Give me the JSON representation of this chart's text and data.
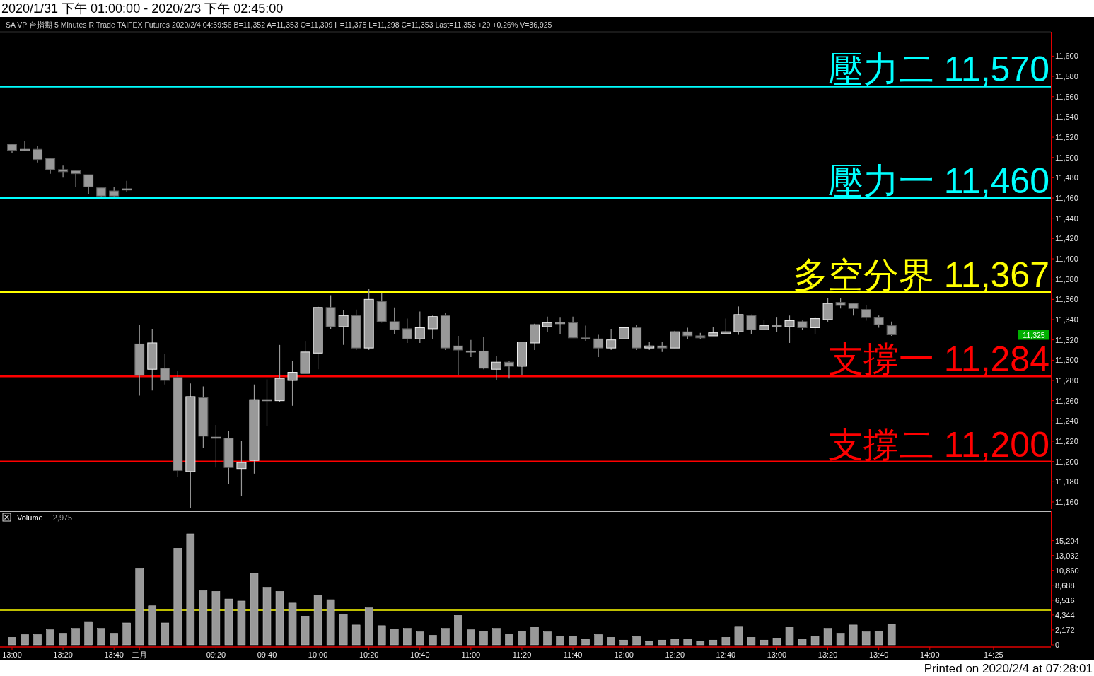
{
  "chart_data": [
    {
      "type": "candlestick",
      "title": "2020/1/31 下午 01:00:00 - 2020/2/3 下午 02:45:00",
      "annotations": [
        "SA VP 台指期 5 Minutes R Trade TAIFEX Futures 2020/2/4 04:59:56 B=11,352 A=11,353 O=11,309 H=11,375 L=11,298 C=11,353 Last=11,353 +29 +0.26% V=36,925",
        "Printed on 2020/2/4 at 07:28:01",
        {
          "text": "11,325",
          "y": 11325
        }
      ],
      "categories": [
        null,
        null,
        null,
        null,
        null,
        null,
        null,
        null,
        null,
        null,
        null,
        null,
        null,
        null,
        null,
        null,
        null,
        null,
        null,
        null,
        null,
        null,
        null,
        null,
        null,
        null,
        null,
        null,
        null,
        null,
        null,
        null,
        null,
        null,
        null,
        null,
        null,
        null,
        null,
        null,
        null,
        null,
        null,
        null,
        null,
        null,
        null,
        null,
        null,
        null,
        null,
        null,
        null,
        null,
        null,
        null,
        null,
        null,
        null,
        null,
        null,
        null,
        null,
        null,
        null,
        null,
        null,
        null,
        null,
        null,
        null,
        null,
        null,
        null,
        null,
        null,
        null,
        null,
        null,
        null,
        null,
        null
      ],
      "color": "#999999",
      "ohlc": [
        [
          11513,
          11513,
          11504,
          11507
        ],
        [
          11508,
          11516,
          11506,
          11508
        ],
        [
          11508,
          11511,
          11495,
          11498
        ],
        [
          11499,
          11499,
          11484,
          11488
        ],
        [
          11488,
          11492,
          11480,
          11486
        ],
        [
          11487,
          11488,
          11471,
          11484
        ],
        [
          11483,
          11483,
          11464,
          11471
        ],
        [
          11470,
          11470,
          11461,
          11462
        ],
        [
          11467,
          11471,
          11461,
          11462
        ],
        [
          11469,
          11477,
          11466,
          11469
        ],
        [
          11316,
          11335,
          11265,
          11285
        ],
        [
          11291,
          11331,
          11270,
          11317
        ],
        [
          11292,
          11306,
          11276,
          11280
        ],
        [
          11283,
          11289,
          11185,
          11191
        ],
        [
          11190,
          11277,
          11154,
          11264
        ],
        [
          11263,
          11274,
          11213,
          11225
        ],
        [
          11224,
          11236,
          11194,
          11224
        ],
        [
          11223,
          11230,
          11178,
          11194
        ],
        [
          11193,
          11220,
          11166,
          11199
        ],
        [
          11201,
          11276,
          11188,
          11261
        ],
        [
          11261,
          11281,
          11235,
          11261
        ],
        [
          11260,
          11315,
          11259,
          11282
        ],
        [
          11280,
          11299,
          11255,
          11288
        ],
        [
          11287,
          11319,
          11287,
          11308
        ],
        [
          11307,
          11353,
          11291,
          11352
        ],
        [
          11352,
          11364,
          11331,
          11333
        ],
        [
          11333,
          11349,
          11315,
          11344
        ],
        [
          11344,
          11350,
          11310,
          11312
        ],
        [
          11312,
          11370,
          11310,
          11360
        ],
        [
          11358,
          11366,
          11337,
          11338
        ],
        [
          11338,
          11352,
          11326,
          11330
        ],
        [
          11331,
          11341,
          11317,
          11321
        ],
        [
          11321,
          11348,
          11317,
          11332
        ],
        [
          11331,
          11344,
          11321,
          11343
        ],
        [
          11344,
          11347,
          11310,
          11312
        ],
        [
          11314,
          11324,
          11285,
          11310
        ],
        [
          11309,
          11320,
          11303,
          11309
        ],
        [
          11309,
          11323,
          11291,
          11292
        ],
        [
          11291,
          11304,
          11280,
          11298
        ],
        [
          11298,
          11299,
          11282,
          11294
        ],
        [
          11294,
          11318,
          11285,
          11318
        ],
        [
          11317,
          11336,
          11310,
          11335
        ],
        [
          11333,
          11343,
          11328,
          11337
        ],
        [
          11337,
          11342,
          11326,
          11337
        ],
        [
          11337,
          11343,
          11322,
          11322
        ],
        [
          11322,
          11334,
          11319,
          11321
        ],
        [
          11321,
          11325,
          11303,
          11312
        ],
        [
          11312,
          11331,
          11310,
          11320
        ],
        [
          11321,
          11332,
          11321,
          11332
        ],
        [
          11332,
          11335,
          11310,
          11312
        ],
        [
          11312,
          11318,
          11310,
          11314
        ],
        [
          11314,
          11318,
          11308,
          11312
        ],
        [
          11312,
          11329,
          11312,
          11328
        ],
        [
          11328,
          11332,
          11321,
          11324
        ],
        [
          11324,
          11327,
          11321,
          11322
        ],
        [
          11324,
          11333,
          11324,
          11327
        ],
        [
          11326,
          11341,
          11326,
          11328
        ],
        [
          11328,
          11353,
          11325,
          11345
        ],
        [
          11344,
          11345,
          11326,
          11330
        ],
        [
          11330,
          11340,
          11330,
          11334
        ],
        [
          11334,
          11342,
          11328,
          11334
        ],
        [
          11333,
          11344,
          11317,
          11339
        ],
        [
          11338,
          11339,
          11330,
          11332
        ],
        [
          11332,
          11342,
          11326,
          11341
        ],
        [
          11340,
          11361,
          11338,
          11356
        ],
        [
          11357,
          11361,
          11351,
          11354
        ],
        [
          11356,
          11356,
          11344,
          11351
        ],
        [
          11350,
          11354,
          11339,
          11342
        ],
        [
          11342,
          11344,
          11332,
          11335
        ],
        [
          11334,
          11338,
          11324,
          11325
        ],
        null,
        null,
        null,
        null,
        null,
        null,
        null,
        null,
        null,
        null,
        null,
        null
      ],
      "ylim": [
        11153,
        11624
      ],
      "yticks": [
        {
          "value": 11160,
          "label": "11,160"
        },
        {
          "value": 11180,
          "label": "11,180"
        },
        {
          "value": 11200,
          "label": "11,200"
        },
        {
          "value": 11220,
          "label": "11,220"
        },
        {
          "value": 11240,
          "label": "11,240"
        },
        {
          "value": 11260,
          "label": "11,260"
        },
        {
          "value": 11280,
          "label": "11,280"
        },
        {
          "value": 11300,
          "label": "11,300"
        },
        {
          "value": 11320,
          "label": "11,320"
        },
        {
          "value": 11340,
          "label": "11,340"
        },
        {
          "value": 11360,
          "label": "11,360"
        },
        {
          "value": 11380,
          "label": "11,380"
        },
        {
          "value": 11400,
          "label": "11,400"
        },
        {
          "value": 11420,
          "label": "11,420"
        },
        {
          "value": 11440,
          "label": "11,440"
        },
        {
          "value": 11460,
          "label": "11,460"
        },
        {
          "value": 11480,
          "label": "11,480"
        },
        {
          "value": 11500,
          "label": "11,500"
        },
        {
          "value": 11520,
          "label": "11,520"
        },
        {
          "value": 11540,
          "label": "11,540"
        },
        {
          "value": 11560,
          "label": "11,560"
        },
        {
          "value": 11580,
          "label": "11,580"
        },
        {
          "value": 11600,
          "label": "11,600"
        }
      ],
      "ref_lines": [
        {
          "axis": "y",
          "value": 11570,
          "label": "壓力二 11,570",
          "color": "#00ffff"
        },
        {
          "axis": "y",
          "value": 11460,
          "label": "壓力一 11,460",
          "color": "#00ffff"
        },
        {
          "axis": "y",
          "value": 11367,
          "label": "多空分界 11,367",
          "color": "#ffff00"
        },
        {
          "axis": "y",
          "value": 11284,
          "label": "支撐一 11,284",
          "color": "#ff0000"
        },
        {
          "axis": "y",
          "value": 11200,
          "label": "支撐二 11,200",
          "color": "#ff0000"
        }
      ],
      "tick_labels": "y"
    },
    {
      "type": "bar",
      "annotations": [
        "2,975"
      ],
      "categories": [
        "13:00",
        null,
        null,
        null,
        "13:20",
        null,
        null,
        null,
        "13:40",
        null,
        "二月",
        null,
        null,
        null,
        null,
        null,
        "09:20",
        null,
        null,
        null,
        "09:40",
        null,
        null,
        null,
        "10:00",
        null,
        null,
        null,
        "10:20",
        null,
        null,
        null,
        "10:40",
        null,
        null,
        null,
        "11:00",
        null,
        null,
        null,
        "11:20",
        null,
        null,
        null,
        "11:40",
        null,
        null,
        null,
        "12:00",
        null,
        null,
        null,
        "12:20",
        null,
        null,
        null,
        "12:40",
        null,
        null,
        null,
        "13:00",
        null,
        null,
        null,
        "13:20",
        null,
        null,
        null,
        "13:40",
        null,
        null,
        null,
        "14:00",
        null,
        null,
        null,
        null,
        "14:25",
        null,
        null,
        null,
        null
      ],
      "series": [
        {
          "name": "Volume",
          "color": "#999999",
          "values": [
            1100,
            1500,
            1500,
            2200,
            1700,
            2400,
            3400,
            2400,
            1700,
            3200,
            11200,
            5700,
            3200,
            14100,
            16200,
            7900,
            7800,
            6700,
            6400,
            10400,
            8400,
            7800,
            6100,
            4200,
            7300,
            6600,
            4500,
            2900,
            5400,
            2800,
            2300,
            2400,
            1900,
            1400,
            2400,
            4300,
            2200,
            2000,
            2400,
            1600,
            2000,
            2600,
            1900,
            1300,
            1300,
            800,
            1500,
            1100,
            700,
            1200,
            500,
            700,
            800,
            900,
            500,
            700,
            1100,
            2700,
            1100,
            700,
            1000,
            2600,
            900,
            1300,
            2400,
            1700,
            2900,
            1900,
            2000,
            2975,
            null,
            null,
            null,
            null,
            null,
            null,
            null,
            null,
            null,
            null,
            null,
            null
          ]
        }
      ],
      "ylim": [
        0,
        19500
      ],
      "yticks": [
        0,
        {
          "value": 2172,
          "label": "2,172"
        },
        {
          "value": 4344,
          "label": "4,344"
        },
        {
          "value": 6516,
          "label": "6,516"
        },
        {
          "value": 8688,
          "label": "8,688"
        },
        {
          "value": 10860,
          "label": "10,860"
        },
        {
          "value": 13032,
          "label": "13,032"
        },
        {
          "value": 15204,
          "label": "15,204"
        }
      ],
      "ref_lines": [
        {
          "axis": "y",
          "value": 5100,
          "color": "#ffff00"
        }
      ],
      "legend": "top left"
    }
  ]
}
